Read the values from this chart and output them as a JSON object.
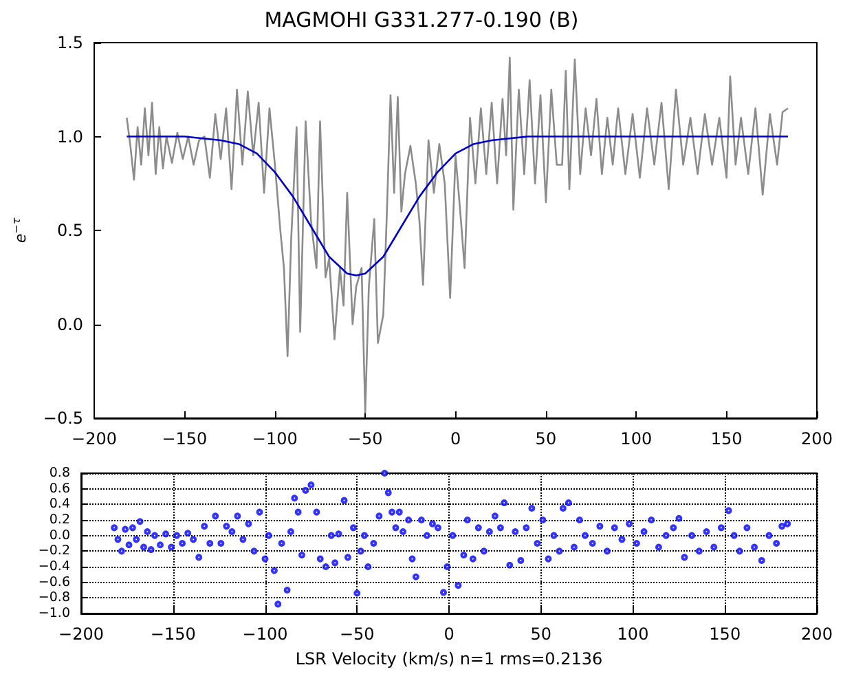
{
  "chart_data": [
    {
      "type": "line",
      "title": "MAGMOHI G331.277-0.190 (B)",
      "ylabel": "e$^{−τ}$",
      "grid": false,
      "xlim": [
        -200,
        200
      ],
      "xticks": [
        {
          "value": -200,
          "label": "−200"
        },
        {
          "value": -150,
          "label": "−150"
        },
        {
          "value": -100,
          "label": "−100"
        },
        {
          "value": -50,
          "label": "−50"
        },
        0,
        50,
        100,
        150,
        200
      ],
      "ylim": [
        -0.5,
        1.5
      ],
      "yticks": [
        {
          "value": -0.5,
          "label": "−0.5"
        },
        {
          "value": 0,
          "label": "0.0"
        },
        {
          "value": 0.5,
          "label": "0.5"
        },
        {
          "value": 1,
          "label": "1.0"
        },
        {
          "value": 1.5,
          "label": "1.5"
        }
      ],
      "series": [
        {
          "color": "#8c8c8c",
          "x": [
            -182,
            -180,
            -178,
            -176,
            -174,
            -172,
            -170,
            -168,
            -166,
            -164,
            -162,
            -160,
            -157,
            -154,
            -151,
            -148,
            -145,
            -142,
            -139,
            -136,
            -133,
            -130,
            -127,
            -124,
            -121,
            -118,
            -115,
            -112,
            -109,
            -106,
            -103,
            -100,
            -97,
            -95,
            -93,
            -91,
            -88,
            -86,
            -83,
            -80,
            -77,
            -75,
            -72,
            -70,
            -67,
            -64,
            -62,
            -60,
            -57,
            -55,
            -52,
            -50,
            -48,
            -45,
            -43,
            -40,
            -38,
            -36,
            -34,
            -32,
            -30,
            -28,
            -25,
            -22,
            -20,
            -18,
            -15,
            -12,
            -9,
            -6,
            -3,
            0,
            3,
            5,
            8,
            11,
            14,
            17,
            20,
            23,
            26,
            28,
            30,
            32,
            35,
            38,
            41,
            44,
            47,
            50,
            53,
            56,
            59,
            61,
            63,
            66,
            69,
            72,
            75,
            78,
            81,
            84,
            87,
            90,
            94,
            98,
            102,
            106,
            110,
            114,
            118,
            122,
            126,
            130,
            134,
            138,
            142,
            146,
            150,
            152,
            155,
            158,
            162,
            166,
            170,
            174,
            178,
            181,
            184
          ],
          "values": [
            1.1,
            0.95,
            0.77,
            1.05,
            0.85,
            1.15,
            0.9,
            1.18,
            0.8,
            1.05,
            0.83,
            1.0,
            0.86,
            1.02,
            0.88,
            1.0,
            0.85,
            0.98,
            1.0,
            0.78,
            1.12,
            0.88,
            1.15,
            0.72,
            1.25,
            0.85,
            1.24,
            0.9,
            1.18,
            0.7,
            1.15,
            0.85,
            0.5,
            0.3,
            -0.17,
            0.45,
            1.05,
            -0.04,
            1.08,
            0.55,
            0.3,
            1.08,
            0.25,
            0.35,
            -0.08,
            0.3,
            0.1,
            0.7,
            0.0,
            0.2,
            0.3,
            -0.47,
            0.2,
            0.56,
            -0.1,
            0.05,
            0.6,
            1.22,
            0.7,
            1.21,
            0.6,
            0.8,
            0.95,
            0.75,
            0.55,
            0.21,
            0.98,
            0.7,
            0.96,
            0.75,
            0.14,
            0.9,
            0.55,
            0.3,
            1.1,
            0.75,
            1.15,
            0.8,
            1.18,
            0.75,
            1.2,
            0.9,
            1.42,
            0.61,
            1.25,
            0.8,
            1.3,
            0.75,
            1.22,
            0.65,
            1.25,
            0.85,
            0.85,
            1.35,
            0.72,
            1.41,
            0.8,
            1.15,
            0.9,
            1.2,
            0.8,
            1.1,
            0.85,
            1.15,
            0.8,
            1.12,
            0.78,
            1.15,
            0.85,
            1.18,
            0.72,
            1.25,
            0.85,
            1.1,
            0.8,
            1.12,
            0.85,
            1.1,
            0.78,
            1.32,
            0.85,
            1.1,
            0.8,
            1.15,
            0.69,
            1.12,
            0.85,
            1.13,
            1.15
          ]
        },
        {
          "color": "#0000cc",
          "x": [
            -182,
            -150,
            -130,
            -120,
            -110,
            -100,
            -90,
            -80,
            -70,
            -60,
            -55,
            -50,
            -40,
            -30,
            -20,
            -10,
            0,
            10,
            20,
            30,
            40,
            184
          ],
          "values": [
            1.0,
            1.0,
            0.98,
            0.96,
            0.91,
            0.81,
            0.68,
            0.52,
            0.36,
            0.27,
            0.26,
            0.27,
            0.36,
            0.52,
            0.68,
            0.81,
            0.91,
            0.96,
            0.98,
            0.99,
            1.0,
            1.0
          ]
        }
      ]
    },
    {
      "type": "scatter",
      "xlabel": "LSR Velocity (km/s) n=1 rms=0.2136",
      "grid": true,
      "marker": "circle",
      "xlim": [
        -200,
        200
      ],
      "xticks": [
        {
          "value": -200,
          "label": "−200"
        },
        {
          "value": -150,
          "label": "−150"
        },
        {
          "value": -100,
          "label": "−100"
        },
        {
          "value": -50,
          "label": "−50"
        },
        0,
        50,
        100,
        150,
        200
      ],
      "ylim": [
        -1.0,
        0.8
      ],
      "yticks": [
        {
          "value": -1.0,
          "label": "−1.0"
        },
        {
          "value": -0.8,
          "label": "−0.8"
        },
        {
          "value": -0.6,
          "label": "−0.6"
        },
        {
          "value": -0.4,
          "label": "−0.4"
        },
        {
          "value": -0.2,
          "label": "−0.2"
        },
        {
          "value": 0,
          "label": "0.0"
        },
        {
          "value": 0.2,
          "label": "0.2"
        },
        {
          "value": 0.4,
          "label": "0.4"
        },
        {
          "value": 0.6,
          "label": "0.6"
        },
        {
          "value": 0.8,
          "label": "0.8"
        }
      ],
      "series": [
        {
          "color": "#0000ff",
          "x": [
            -182,
            -180,
            -178,
            -176,
            -174,
            -172,
            -170,
            -168,
            -166,
            -164,
            -162,
            -160,
            -157,
            -154,
            -151,
            -148,
            -145,
            -142,
            -139,
            -136,
            -133,
            -130,
            -127,
            -124,
            -121,
            -118,
            -115,
            -112,
            -109,
            -106,
            -103,
            -100,
            -98,
            -95,
            -93,
            -91,
            -88,
            -86,
            -84,
            -82,
            -80,
            -78,
            -75,
            -72,
            -70,
            -67,
            -64,
            -62,
            -60,
            -57,
            -55,
            -52,
            -50,
            -48,
            -46,
            -44,
            -41,
            -38,
            -35,
            -33,
            -31,
            -29,
            -27,
            -25,
            -22,
            -20,
            -18,
            -15,
            -12,
            -9,
            -6,
            -3,
            -1,
            2,
            5,
            8,
            10,
            13,
            16,
            19,
            22,
            25,
            28,
            30,
            33,
            36,
            39,
            42,
            45,
            48,
            51,
            54,
            57,
            60,
            62,
            65,
            68,
            71,
            74,
            78,
            82,
            86,
            90,
            94,
            98,
            102,
            106,
            110,
            114,
            118,
            122,
            125,
            128,
            132,
            136,
            140,
            144,
            148,
            152,
            155,
            158,
            162,
            166,
            170,
            174,
            178,
            181,
            184
          ],
          "values": [
            0.1,
            -0.05,
            -0.2,
            0.08,
            -0.12,
            0.1,
            -0.05,
            0.18,
            -0.15,
            0.05,
            -0.18,
            0.0,
            -0.12,
            0.02,
            -0.15,
            0.0,
            -0.1,
            0.03,
            -0.05,
            -0.28,
            0.12,
            -0.1,
            0.25,
            -0.1,
            0.12,
            0.05,
            0.25,
            -0.05,
            0.15,
            -0.2,
            0.3,
            -0.3,
            0.0,
            -0.45,
            -0.88,
            -0.1,
            -0.7,
            0.05,
            0.48,
            0.3,
            -0.25,
            0.58,
            0.65,
            0.3,
            -0.3,
            -0.4,
            0.0,
            -0.35,
            0.02,
            0.45,
            -0.28,
            0.1,
            -0.74,
            -0.2,
            0.0,
            -0.4,
            -0.1,
            0.25,
            0.8,
            0.55,
            0.3,
            0.1,
            0.3,
            0.05,
            0.2,
            -0.3,
            -0.53,
            0.2,
            0.0,
            0.15,
            0.1,
            -0.73,
            -0.4,
            0.0,
            -0.64,
            -0.25,
            0.2,
            -0.3,
            0.1,
            -0.2,
            0.05,
            0.25,
            0.1,
            0.42,
            -0.38,
            0.05,
            -0.32,
            0.1,
            0.35,
            -0.1,
            0.2,
            -0.3,
            0.0,
            -0.2,
            0.35,
            0.42,
            -0.15,
            0.2,
            0.0,
            -0.1,
            0.12,
            -0.2,
            0.1,
            -0.05,
            0.15,
            -0.1,
            0.05,
            0.2,
            -0.15,
            0.0,
            0.1,
            0.22,
            -0.28,
            0.0,
            -0.2,
            0.05,
            -0.15,
            0.1,
            0.32,
            0.0,
            -0.2,
            0.1,
            -0.15,
            -0.32,
            0.0,
            -0.1,
            0.12,
            0.15
          ]
        }
      ]
    }
  ]
}
